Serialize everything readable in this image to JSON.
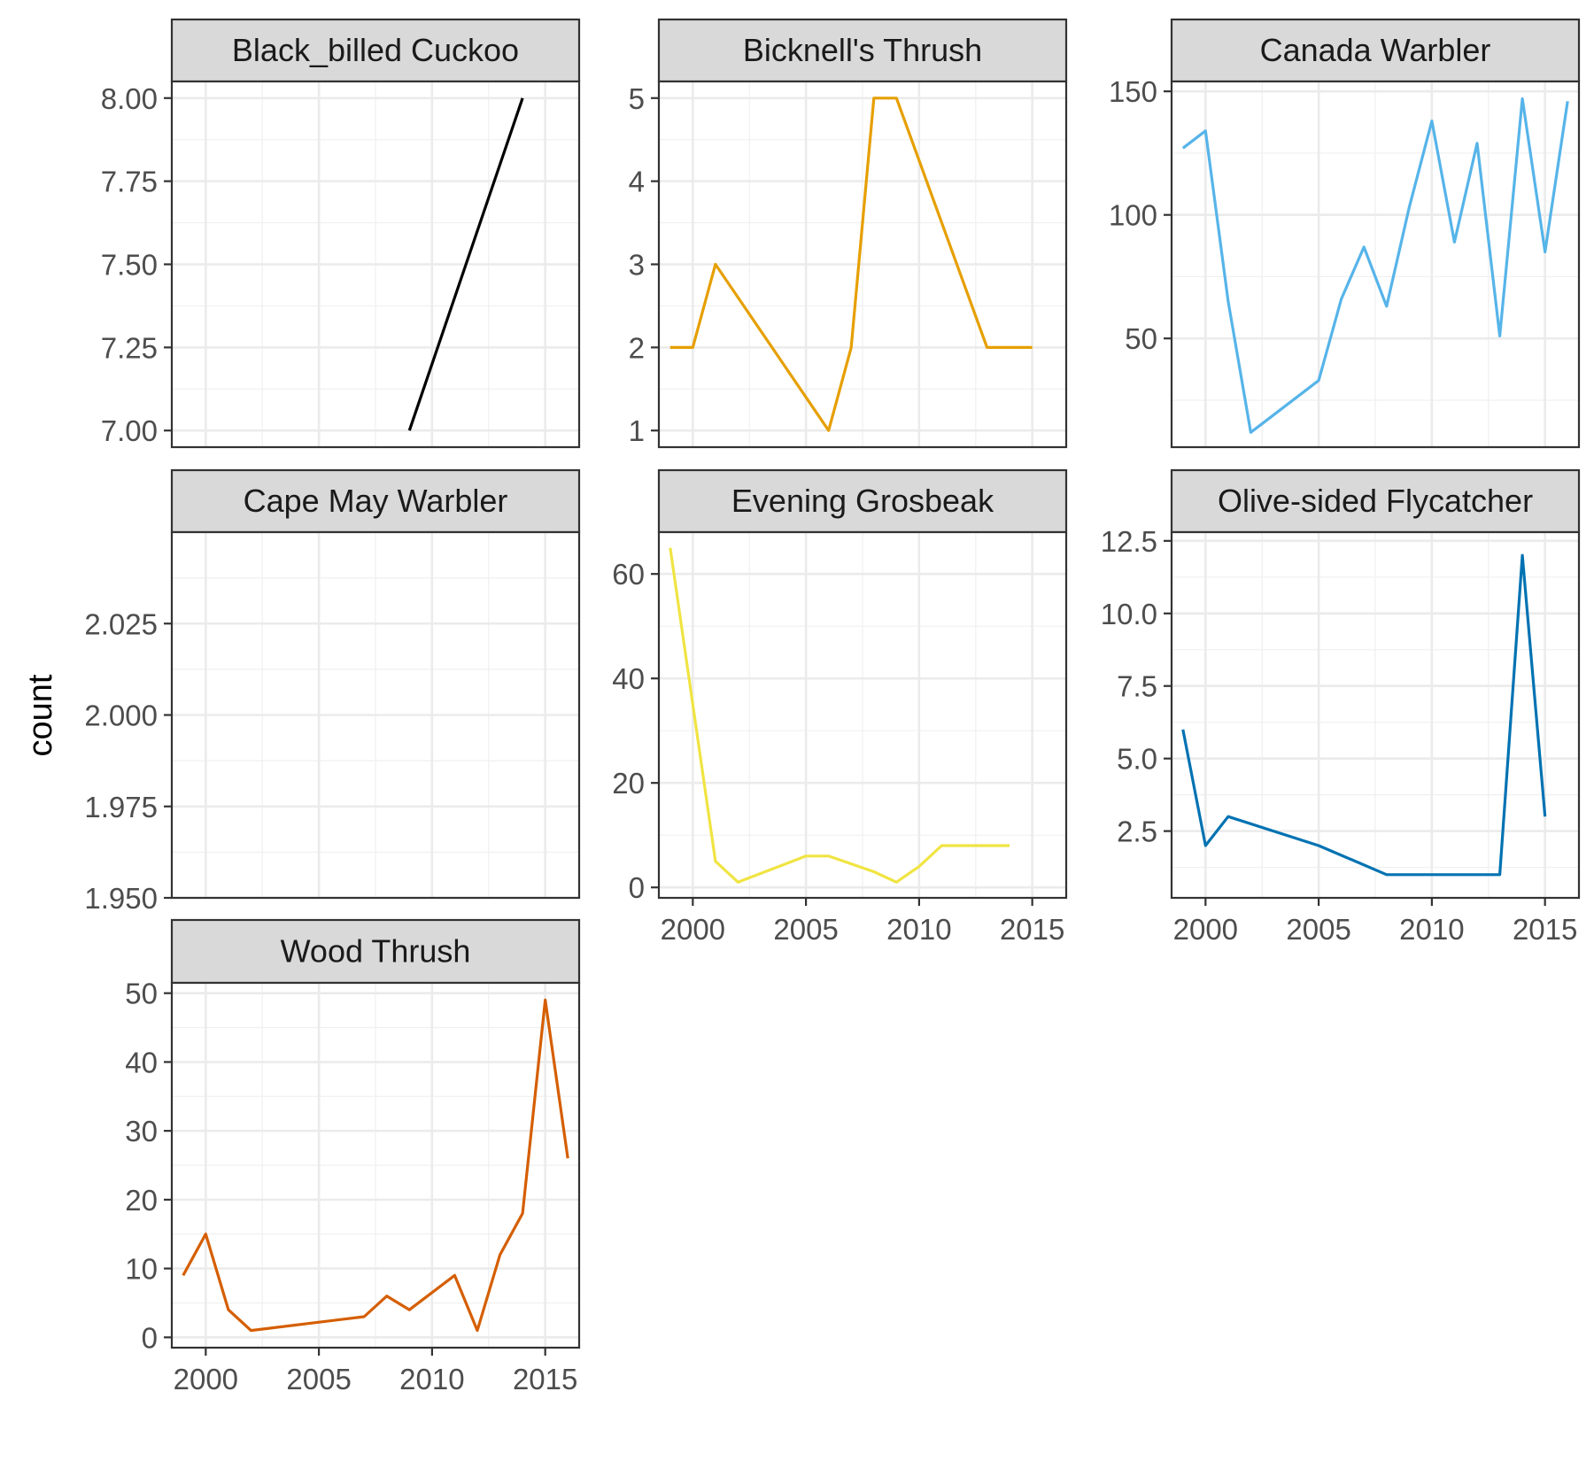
{
  "chart_data": {
    "type": "line",
    "title": "",
    "xlabel": "",
    "ylabel": "count",
    "grid": true,
    "legend": "none",
    "x_ticks": [
      2000,
      2005,
      2010,
      2015
    ],
    "xlim": [
      1998.5,
      2016.5
    ],
    "facets": [
      {
        "name": "Black_billed Cuckoo",
        "color": "#000000",
        "ylim": [
          6.95,
          8.05
        ],
        "y_ticks": [
          7.0,
          7.25,
          7.5,
          7.75,
          8.0
        ],
        "y_tick_labels": [
          "7.00",
          "7.25",
          "7.50",
          "7.75",
          "8.00"
        ],
        "x": [
          2009,
          2014
        ],
        "y": [
          7,
          8
        ]
      },
      {
        "name": "Bicknell's Thrush",
        "color": "#E69F00",
        "ylim": [
          0.8,
          5.2
        ],
        "y_ticks": [
          1,
          2,
          3,
          4,
          5
        ],
        "y_tick_labels": [
          "1",
          "2",
          "3",
          "4",
          "5"
        ],
        "x": [
          1999,
          2000,
          2001,
          2006,
          2007,
          2008,
          2009,
          2013,
          2015
        ],
        "y": [
          2,
          2,
          3,
          1,
          2,
          5,
          5,
          2,
          2
        ]
      },
      {
        "name": "Canada Warbler",
        "color": "#56B4E9",
        "ylim": [
          6,
          154
        ],
        "y_ticks": [
          50,
          100,
          150
        ],
        "y_tick_labels": [
          "50",
          "100",
          "150"
        ],
        "x": [
          1999,
          2000,
          2001,
          2002,
          2005,
          2006,
          2007,
          2008,
          2009,
          2010,
          2011,
          2012,
          2013,
          2014,
          2015,
          2016
        ],
        "y": [
          127,
          134,
          65,
          12,
          33,
          66,
          87,
          63,
          103,
          138,
          89,
          129,
          51,
          147,
          85,
          146
        ]
      },
      {
        "name": "Cape May Warbler",
        "color": "#009E73",
        "ylim": [
          1.95,
          2.05
        ],
        "y_ticks": [
          1.95,
          1.975,
          2.0,
          2.025
        ],
        "y_tick_labels": [
          "1.950",
          "1.975",
          "2.000",
          "2.025"
        ],
        "x": [],
        "y": []
      },
      {
        "name": "Evening Grosbeak",
        "color": "#F0E442",
        "ylim": [
          -2,
          68
        ],
        "y_ticks": [
          0,
          20,
          40,
          60
        ],
        "y_tick_labels": [
          "0",
          "20",
          "40",
          "60"
        ],
        "x": [
          1999,
          2001,
          2002,
          2005,
          2006,
          2008,
          2009,
          2010,
          2011,
          2014
        ],
        "y": [
          65,
          5,
          1,
          6,
          6,
          3,
          1,
          4,
          8,
          8
        ]
      },
      {
        "name": "Olive-sided Flycatcher",
        "color": "#0072B2",
        "ylim": [
          0.2,
          12.8
        ],
        "y_ticks": [
          2.5,
          5.0,
          7.5,
          10.0,
          12.5
        ],
        "y_tick_labels": [
          "2.5",
          "5.0",
          "7.5",
          "10.0",
          "12.5"
        ],
        "x": [
          1999,
          2000,
          2001,
          2005,
          2008,
          2013,
          2014,
          2015
        ],
        "y": [
          6,
          2,
          3,
          2,
          1,
          1,
          12,
          3
        ]
      },
      {
        "name": "Wood Thrush",
        "color": "#D55E00",
        "ylim": [
          -1.5,
          51.5
        ],
        "y_ticks": [
          0,
          10,
          20,
          30,
          40,
          50
        ],
        "y_tick_labels": [
          "0",
          "10",
          "20",
          "30",
          "40",
          "50"
        ],
        "x": [
          1999,
          2000,
          2001,
          2002,
          2007,
          2008,
          2009,
          2011,
          2012,
          2013,
          2014,
          2015,
          2016
        ],
        "y": [
          9,
          15,
          4,
          1,
          3,
          6,
          4,
          9,
          1,
          12,
          18,
          49,
          26
        ]
      }
    ]
  }
}
